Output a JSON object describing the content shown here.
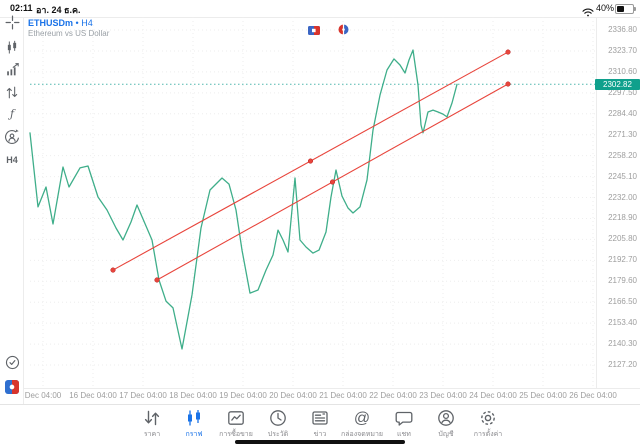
{
  "status_bar": {
    "time": "02:11",
    "date": "อา. 24 ธ.ค.",
    "battery_percent": "40%"
  },
  "header": {
    "symbol": "ETHUSDm",
    "separator": "•",
    "timeframe": "H4",
    "description": "Ethereum vs US Dollar"
  },
  "chart_toolbar": {
    "event_icons": [
      "flag-red-blue-icon",
      "clock-red-blue-icon"
    ]
  },
  "sidebar": {
    "tools": [
      {
        "id": "crosshair"
      },
      {
        "id": "candlesticks"
      },
      {
        "id": "chart-growth"
      },
      {
        "id": "objects"
      },
      {
        "id": "indicators"
      },
      {
        "id": "profile-rotate"
      }
    ],
    "timeframe_label": "H4",
    "bottom_tools": [
      {
        "id": "clock-check"
      },
      {
        "id": "metaquotes-logo"
      }
    ]
  },
  "chart_data": {
    "type": "line",
    "symbol": "ETHUSDm",
    "timeframe": "H4",
    "current_price": 2302.82,
    "y_ticks": [
      2336.8,
      2323.7,
      2310.6,
      2297.5,
      2284.4,
      2271.3,
      2258.2,
      2245.1,
      2232.0,
      2218.9,
      2205.8,
      2192.7,
      2179.6,
      2166.5,
      2153.4,
      2140.3,
      2127.2
    ],
    "x_labels": [
      "Dec 04:00",
      "16 Dec 04:00",
      "17 Dec 04:00",
      "18 Dec 04:00",
      "19 Dec 04:00",
      "20 Dec 04:00",
      "21 Dec 04:00",
      "22 Dec 04:00",
      "23 Dec 04:00",
      "24 Dec 04:00",
      "25 Dec 04:00",
      "26 Dec 04:00"
    ],
    "axis": {
      "price_top": 2336.8,
      "price_bottom": 2127.2,
      "grid": "dotted"
    },
    "series": [
      {
        "name": "ETHUSDm close",
        "color": "#3fae8a",
        "points": [
          [
            -0.26,
            2272.4
          ],
          [
            -0.1,
            2226.1
          ],
          [
            0.06,
            2238.6
          ],
          [
            0.2,
            2215.4
          ],
          [
            0.4,
            2251.1
          ],
          [
            0.52,
            2238.6
          ],
          [
            0.74,
            2250.5
          ],
          [
            0.9,
            2251.7
          ],
          [
            1.1,
            2232.3
          ],
          [
            1.28,
            2224.2
          ],
          [
            1.46,
            2212.9
          ],
          [
            1.6,
            2205.4
          ],
          [
            1.76,
            2216.7
          ],
          [
            1.88,
            2227.3
          ],
          [
            2.18,
            2205.4
          ],
          [
            2.32,
            2180.4
          ],
          [
            2.46,
            2167.2
          ],
          [
            2.6,
            2162.9
          ],
          [
            2.78,
            2137.2
          ],
          [
            2.98,
            2171.0
          ],
          [
            3.16,
            2212.9
          ],
          [
            3.34,
            2236.7
          ],
          [
            3.58,
            2244.2
          ],
          [
            3.72,
            2240.4
          ],
          [
            3.86,
            2224.2
          ],
          [
            3.98,
            2199.1
          ],
          [
            4.14,
            2172.2
          ],
          [
            4.3,
            2174.1
          ],
          [
            4.46,
            2186.6
          ],
          [
            4.6,
            2196.0
          ],
          [
            4.7,
            2211.6
          ],
          [
            4.8,
            2205.4
          ],
          [
            4.9,
            2197.9
          ],
          [
            5.04,
            2244.2
          ],
          [
            5.14,
            2205.4
          ],
          [
            5.26,
            2201.0
          ],
          [
            5.4,
            2197.2
          ],
          [
            5.52,
            2199.1
          ],
          [
            5.66,
            2210.4
          ],
          [
            5.76,
            2232.3
          ],
          [
            5.86,
            2249.2
          ],
          [
            5.98,
            2232.9
          ],
          [
            6.1,
            2225.4
          ],
          [
            6.2,
            2222.3
          ],
          [
            6.34,
            2226.1
          ],
          [
            6.48,
            2243.0
          ],
          [
            6.6,
            2274.2
          ],
          [
            6.74,
            2296.1
          ],
          [
            6.88,
            2311.8
          ],
          [
            7.02,
            2318.7
          ],
          [
            7.14,
            2314.9
          ],
          [
            7.24,
            2309.9
          ],
          [
            7.32,
            2318.0
          ],
          [
            7.4,
            2324.3
          ],
          [
            7.5,
            2302.4
          ],
          [
            7.56,
            2277.4
          ],
          [
            7.6,
            2272.4
          ],
          [
            7.7,
            2285.5
          ],
          [
            7.8,
            2286.7
          ],
          [
            7.9,
            2285.5
          ],
          [
            8.0,
            2284.2
          ],
          [
            8.08,
            2282.4
          ],
          [
            8.18,
            2291.1
          ],
          [
            8.28,
            2302.8
          ]
        ]
      }
    ],
    "trendlines": [
      {
        "name": "channel-upper",
        "color": "#e8453c",
        "from_day": 1.4,
        "from_price": 2186.6,
        "to_day": 9.3,
        "to_price": 2323.0
      },
      {
        "name": "channel-lower",
        "color": "#e8453c",
        "from_day": 2.28,
        "from_price": 2180.4,
        "to_day": 9.3,
        "to_price": 2303.0
      }
    ]
  },
  "tab_bar": {
    "items": [
      {
        "id": "quotes",
        "label": "ราคา",
        "active": false
      },
      {
        "id": "charts",
        "label": "กราฟ",
        "active": true
      },
      {
        "id": "trade",
        "label": "การซื้อขาย",
        "active": false
      },
      {
        "id": "history",
        "label": "ประวัติ",
        "active": false
      },
      {
        "id": "news",
        "label": "ข่าว",
        "active": false
      },
      {
        "id": "mailbox",
        "label": "กล่องจดหมาย",
        "active": false
      },
      {
        "id": "chat",
        "label": "แชท",
        "active": false
      },
      {
        "id": "accounts",
        "label": "บัญชี",
        "active": false
      },
      {
        "id": "settings",
        "label": "การตั้งค่า",
        "active": false
      }
    ]
  },
  "colors": {
    "accent_blue": "#1a73e8",
    "line_green": "#3fae8a",
    "trend_red": "#e8453c",
    "price_badge": "#0fa08c",
    "current_price_line": "#26a69a",
    "axis_text": "#9e9e9e",
    "icon_gray": "#5f6368"
  }
}
